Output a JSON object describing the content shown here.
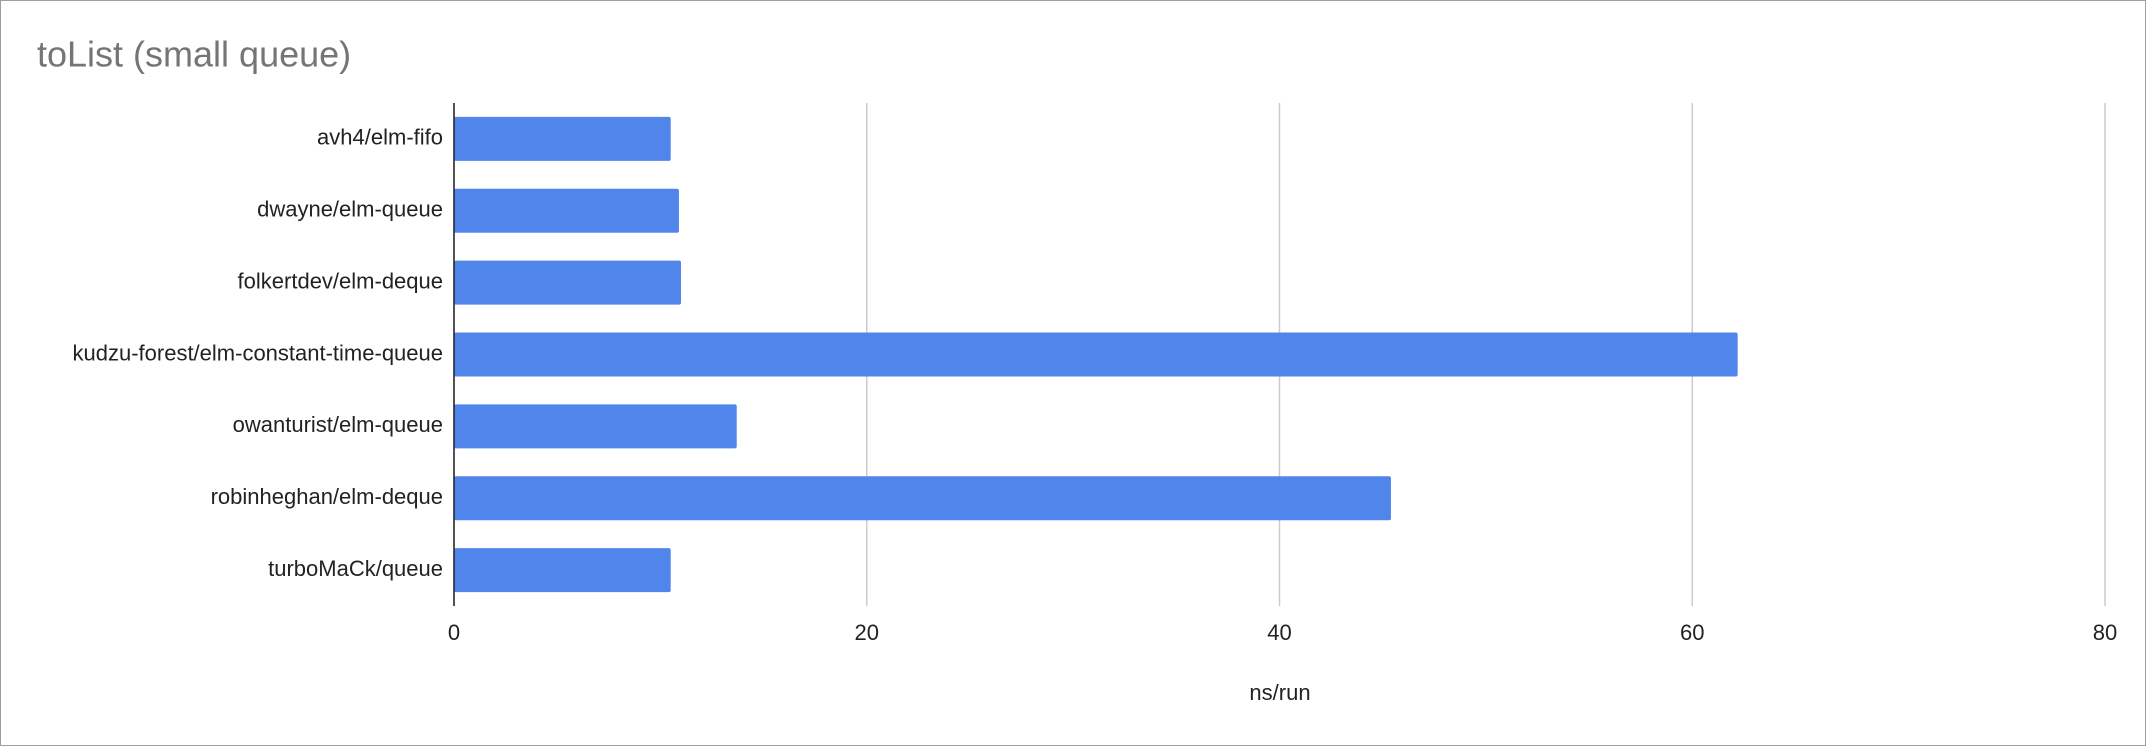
{
  "chart_data": {
    "type": "hbar",
    "title": "toList (small queue)",
    "x_label": "ns/run",
    "categories": [
      "avh4/elm-fifo",
      "dwayne/elm-queue",
      "folkertdev/elm-deque",
      "kudzu-forest/elm-constant-time-queue",
      "owanturist/elm-queue",
      "robinheghan/elm-deque",
      "turboMaCk/queue"
    ],
    "values": [
      10.5,
      10.9,
      11.0,
      62.2,
      13.7,
      45.4,
      10.5
    ],
    "color": "#5085ec",
    "xlim": [
      0,
      80
    ],
    "xticks": [
      0,
      20,
      40,
      60,
      80
    ],
    "grid": true
  }
}
